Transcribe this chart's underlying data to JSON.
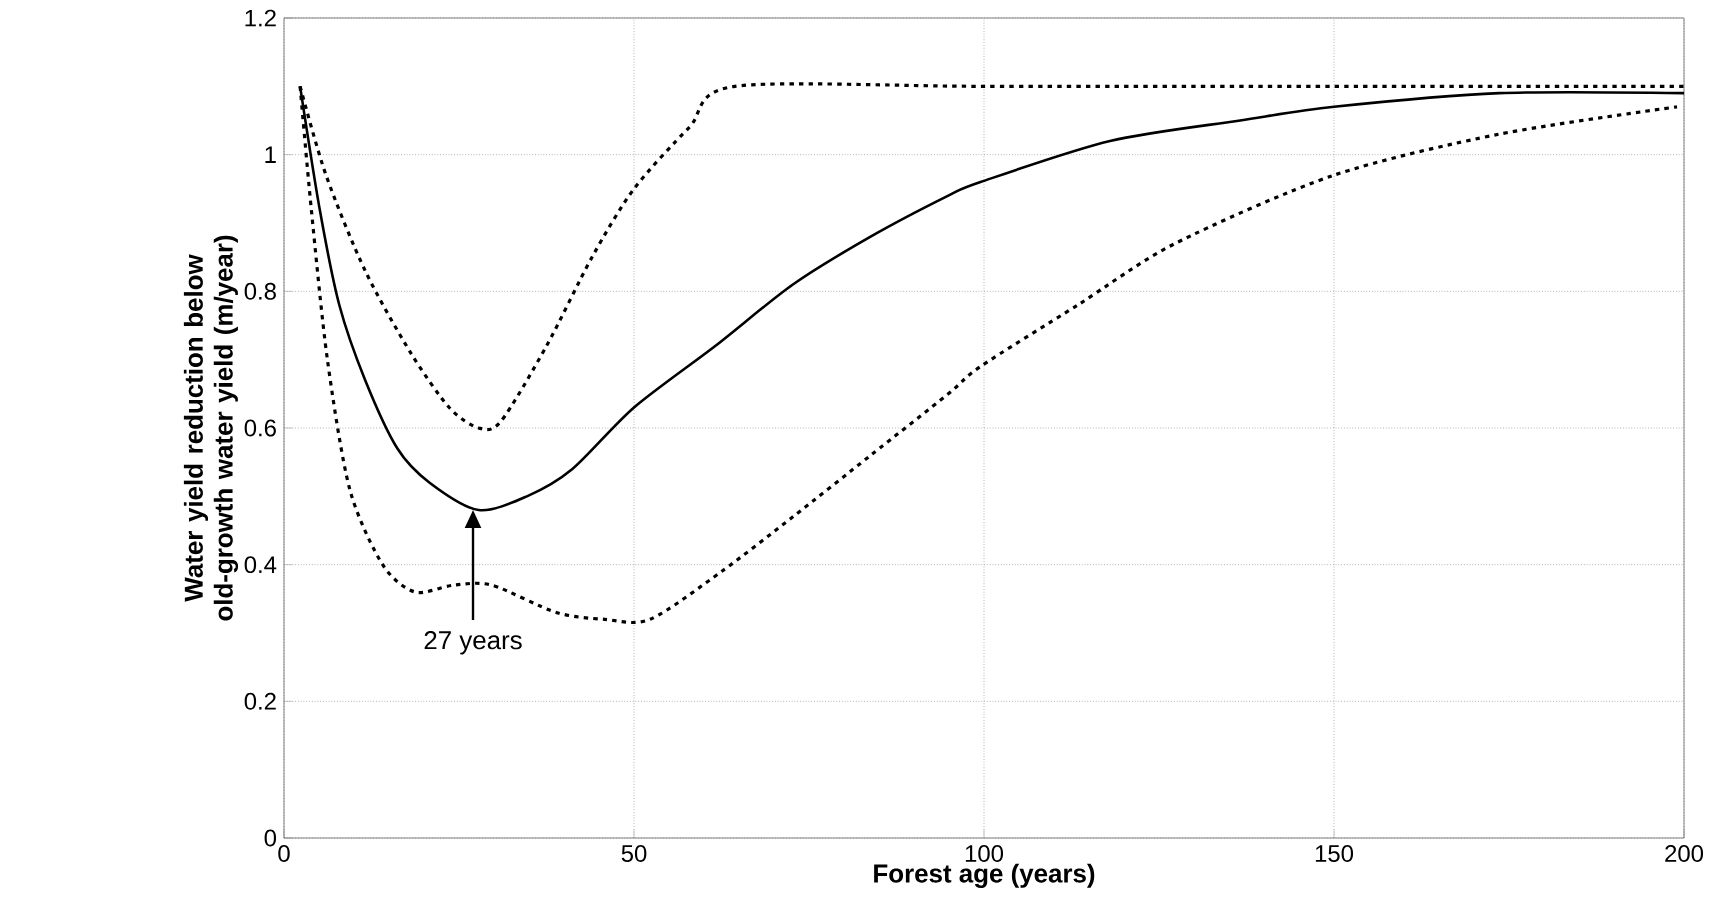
{
  "chart_data": {
    "type": "line",
    "xlabel": "Forest age (years)",
    "ylabel": "Water yield reduction below old-growth water yield (m/year)",
    "xlim": [
      0,
      200
    ],
    "xticks": [
      0,
      50,
      100,
      150,
      200
    ],
    "ylim": [
      0,
      1.2
    ],
    "yticks": [
      0,
      0.2,
      0.4,
      0.6,
      0.8,
      1,
      1.2
    ],
    "grid": true,
    "marker": "none",
    "series": [
      {
        "color": "#000000",
        "line_style": "solid",
        "x": [
          2.3,
          5.1,
          7.9,
          11.6,
          16.2,
          20.8,
          27.8,
          34.7,
          41.2,
          50,
          61.6,
          72.7,
          83.8,
          94.9,
          99.5,
          118,
          136.6,
          150,
          173.6,
          200
        ],
        "values": [
          1.1,
          0.92,
          0.78,
          0.67,
          0.57,
          0.52,
          0.48,
          0.5,
          0.54,
          0.63,
          0.72,
          0.81,
          0.88,
          0.94,
          0.96,
          1.02,
          1.05,
          1.07,
          1.09,
          1.09
        ]
      },
      {
        "color": "#000000",
        "line_style": "dotted",
        "x": [
          2.3,
          6,
          11.6,
          18.1,
          23.6,
          27.8,
          31,
          37.5,
          44,
          50,
          57.9,
          64.4,
          100,
          150,
          200
        ],
        "values": [
          1.1,
          0.97,
          0.83,
          0.71,
          0.63,
          0.6,
          0.61,
          0.72,
          0.85,
          0.95,
          1.04,
          1.1,
          1.1,
          1.1,
          1.1
        ]
      },
      {
        "color": "#000000",
        "line_style": "dotted",
        "x": [
          2.3,
          3.9,
          6.2,
          9.4,
          14.1,
          18.7,
          24.2,
          29.7,
          38.9,
          45.8,
          52.3,
          62.5,
          72.7,
          83.8,
          94.9,
          99.5,
          113.4,
          127.3,
          150,
          173.6,
          199
        ],
        "values": [
          1.1,
          0.92,
          0.7,
          0.51,
          0.4,
          0.36,
          0.37,
          0.37,
          0.33,
          0.32,
          0.32,
          0.39,
          0.47,
          0.56,
          0.65,
          0.69,
          0.78,
          0.87,
          0.97,
          1.03,
          1.07
        ]
      }
    ],
    "annotations": [
      {
        "text": "27 years",
        "x": 27,
        "y": 0.48
      }
    ]
  }
}
